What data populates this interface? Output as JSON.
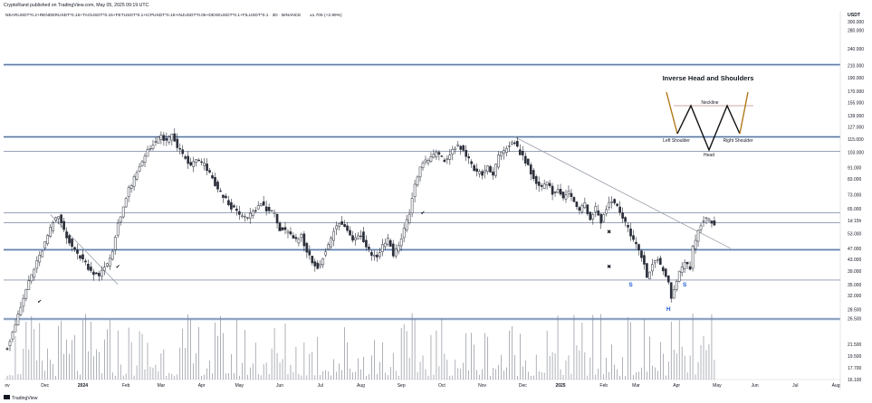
{
  "header": {
    "publisher": "CryptoRand published on TradingView.com, May 05, 2025 09:19 UTC",
    "symbol_line": "NEARUSDT*0.2+RENDERUSDT*0.15+TAOUSDT*0.15+FETUSDT*0.1+ICPUSDT*0.15+INJUSDT*0.05+DEXEUSDT*0.1+FILUSDT*0.1 · 3D · BINANCE",
    "last_change": "±1.705 (+2.99%)"
  },
  "footer": {
    "brand": "TradingView"
  },
  "colors": {
    "up": "#ffffff",
    "down": "#2a2e39",
    "hline": "#5b6b8a",
    "hline_thick": "#9ec3ee",
    "trend": "#9aa0ab",
    "volume": "#7a7f8a",
    "annot_blue": "#1e5bd6",
    "pattern": "#b07a1c",
    "pattern_down": "#111111"
  },
  "chart_data": {
    "type": "candlestick",
    "title": "",
    "ylabel": "USDT",
    "ylim": [
      16.1,
      300
    ],
    "yscale": "log",
    "y_ticks": [
      "300.000",
      "280.000",
      "240.000",
      "210.000",
      "190.000",
      "170.000",
      "155.000",
      "139.000",
      "127.000",
      "115.000",
      "103.000",
      "91.000",
      "83.000",
      "73.000",
      "65.000",
      "1d 15h",
      "53.000",
      "47.000",
      "43.000",
      "39.000",
      "35.000",
      "32.000",
      "28.500",
      "26.500",
      "21.500",
      "19.500",
      "17.700",
      "16.100"
    ],
    "y_tick_values": [
      300,
      280,
      240,
      210,
      190,
      170,
      155,
      139,
      127,
      115,
      103,
      91,
      83,
      73,
      65,
      59,
      53,
      47,
      43,
      39,
      35,
      32,
      28.5,
      26.5,
      21.5,
      19.5,
      17.7,
      16.1
    ],
    "x_ticks": [
      "ov",
      "Dec",
      "2024",
      "Feb",
      "Mar",
      "Apr",
      "May",
      "Jun",
      "Jul",
      "Aug",
      "Sep",
      "Oct",
      "Nov",
      "Dec",
      "2025",
      "Feb",
      "Mar",
      "Apr",
      "May",
      "Jun",
      "Jul",
      "Aug"
    ],
    "x_tick_units": [
      0,
      14,
      28,
      44,
      57,
      72,
      86,
      101,
      116,
      131,
      146,
      161,
      176,
      191,
      205,
      221,
      233,
      248,
      263,
      277,
      292,
      307
    ],
    "last_index": 262,
    "anchors": [
      [
        0,
        21
      ],
      [
        4,
        27
      ],
      [
        8,
        36
      ],
      [
        12,
        44
      ],
      [
        15,
        52
      ],
      [
        17,
        58
      ],
      [
        19,
        61
      ],
      [
        22,
        52
      ],
      [
        25,
        46
      ],
      [
        28,
        43
      ],
      [
        31,
        39
      ],
      [
        34,
        38
      ],
      [
        37,
        41
      ],
      [
        39,
        46
      ],
      [
        41,
        58
      ],
      [
        43,
        66
      ],
      [
        45,
        76
      ],
      [
        47,
        83
      ],
      [
        50,
        95
      ],
      [
        52,
        106
      ],
      [
        55,
        112
      ],
      [
        57,
        118
      ],
      [
        59,
        112
      ],
      [
        61,
        118
      ],
      [
        63,
        108
      ],
      [
        66,
        98
      ],
      [
        68,
        92
      ],
      [
        70,
        97
      ],
      [
        73,
        93
      ],
      [
        76,
        83
      ],
      [
        78,
        76
      ],
      [
        80,
        72
      ],
      [
        83,
        66
      ],
      [
        86,
        62
      ],
      [
        88,
        60
      ],
      [
        91,
        63
      ],
      [
        94,
        68
      ],
      [
        96,
        65
      ],
      [
        99,
        62
      ],
      [
        101,
        56
      ],
      [
        104,
        53
      ],
      [
        107,
        50
      ],
      [
        109,
        52
      ],
      [
        111,
        46
      ],
      [
        113,
        42
      ],
      [
        115,
        40
      ],
      [
        117,
        44
      ],
      [
        119,
        48
      ],
      [
        121,
        54
      ],
      [
        123,
        58
      ],
      [
        125,
        56
      ],
      [
        128,
        51
      ],
      [
        131,
        53
      ],
      [
        133,
        48
      ],
      [
        135,
        45
      ],
      [
        137,
        44
      ],
      [
        139,
        48
      ],
      [
        141,
        51
      ],
      [
        143,
        45
      ],
      [
        145,
        48
      ],
      [
        147,
        55
      ],
      [
        149,
        63
      ],
      [
        151,
        79
      ],
      [
        153,
        92
      ],
      [
        156,
        97
      ],
      [
        159,
        103
      ],
      [
        162,
        96
      ],
      [
        165,
        104
      ],
      [
        167,
        110
      ],
      [
        170,
        101
      ],
      [
        173,
        89
      ],
      [
        176,
        86
      ],
      [
        178,
        92
      ],
      [
        180,
        86
      ],
      [
        182,
        99
      ],
      [
        184,
        104
      ],
      [
        186,
        110
      ],
      [
        188,
        112
      ],
      [
        190,
        103
      ],
      [
        192,
        96
      ],
      [
        194,
        88
      ],
      [
        196,
        80
      ],
      [
        198,
        77
      ],
      [
        200,
        80
      ],
      [
        202,
        74
      ],
      [
        204,
        77
      ],
      [
        206,
        70
      ],
      [
        208,
        75
      ],
      [
        210,
        70
      ],
      [
        212,
        64
      ],
      [
        214,
        67
      ],
      [
        216,
        60
      ],
      [
        218,
        65
      ],
      [
        220,
        58
      ],
      [
        222,
        65
      ],
      [
        224,
        70
      ],
      [
        226,
        66
      ],
      [
        228,
        60
      ],
      [
        230,
        55
      ],
      [
        232,
        50
      ],
      [
        234,
        46
      ],
      [
        236,
        42
      ],
      [
        237,
        37
      ],
      [
        239,
        41
      ],
      [
        241,
        43
      ],
      [
        243,
        39
      ],
      [
        245,
        36
      ],
      [
        246,
        31
      ],
      [
        247,
        34
      ],
      [
        249,
        39
      ],
      [
        251,
        42
      ],
      [
        253,
        40
      ],
      [
        254,
        47
      ],
      [
        256,
        55
      ],
      [
        258,
        60
      ],
      [
        260,
        59
      ],
      [
        262,
        58
      ]
    ],
    "volume_max": 100,
    "hlines": [
      211,
      117,
      104,
      63,
      58,
      46.5,
      36.3,
      26.4
    ],
    "hlines_thick": [
      211,
      117,
      46.5,
      26.4
    ],
    "trendlines": [
      {
        "from": [
          16,
          62
        ],
        "to": [
          41,
          35
        ]
      },
      {
        "from": [
          188,
          117
        ],
        "to": [
          268,
          47
        ]
      }
    ],
    "markers": [
      {
        "kind": "check",
        "text": "✔",
        "x": 12,
        "y": 30
      },
      {
        "kind": "check",
        "text": "✔",
        "x": 41,
        "y": 40
      },
      {
        "kind": "check",
        "text": "✔",
        "x": 154,
        "y": 62
      },
      {
        "kind": "cross",
        "text": "✖",
        "x": 101,
        "y": 54
      },
      {
        "kind": "cross",
        "text": "✖",
        "x": 223,
        "y": 53
      },
      {
        "kind": "cross",
        "text": "✖",
        "x": 223,
        "y": 40
      }
    ],
    "labels": [
      {
        "text": "S",
        "x": 231,
        "y": 34.5,
        "color": "annot_blue"
      },
      {
        "text": "H",
        "x": 245,
        "y": 28.2,
        "color": "annot_blue"
      },
      {
        "text": "S",
        "x": 251,
        "y": 34.5,
        "color": "annot_blue"
      }
    ],
    "pattern_box": {
      "title": "Inverse Head and Shoulders",
      "neckline": "Neckline",
      "left_shoulder": "Left Shoulder",
      "head": "Head",
      "right_shoulder": "Right Shoulder"
    }
  }
}
